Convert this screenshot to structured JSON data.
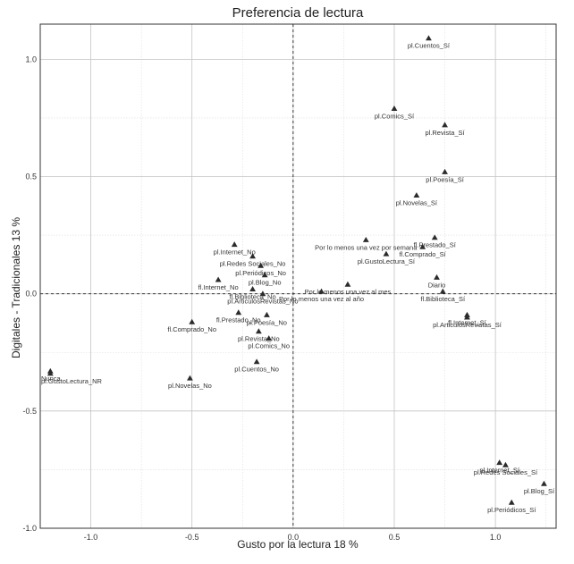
{
  "chart_data": {
    "type": "scatter",
    "title": "Preferencia de lectura",
    "xlabel": "Gusto por la lectura 18 %",
    "ylabel": "Digitales - Tradicionales 13 %",
    "xlim": [
      -1.25,
      1.3
    ],
    "ylim": [
      -1.0,
      1.15
    ],
    "x_ticks": [
      -1.0,
      -0.5,
      0.0,
      0.5,
      1.0
    ],
    "x_tick_labels": [
      "-1.0",
      "-0.5",
      "0.0",
      "0.5",
      "1.0"
    ],
    "y_ticks": [
      -1.0,
      -0.5,
      0.0,
      0.5,
      1.0
    ],
    "y_tick_labels": [
      "-1.0",
      "-0.5",
      "0.0",
      "0.5",
      "1.0"
    ],
    "grid": true,
    "reference_lines": {
      "x": 0,
      "y": 0
    },
    "marker": "triangle",
    "points": [
      {
        "label": "pl.Cuentos_Sí",
        "x": 0.67,
        "y": 1.09
      },
      {
        "label": "pl.Comics_Sí",
        "x": 0.5,
        "y": 0.79
      },
      {
        "label": "pl.Revista_Sí",
        "x": 0.75,
        "y": 0.72
      },
      {
        "label": "pl.Poesía_Sí",
        "x": 0.75,
        "y": 0.52
      },
      {
        "label": "pl.Novelas_Sí",
        "x": 0.61,
        "y": 0.42
      },
      {
        "label": "Por lo menos una vez por semana",
        "x": 0.36,
        "y": 0.23
      },
      {
        "label": "fl.Prestado_Sí",
        "x": 0.7,
        "y": 0.24
      },
      {
        "label": "fl.Comprado_Sí",
        "x": 0.64,
        "y": 0.2
      },
      {
        "label": "pl.GustoLectura_Sí",
        "x": 0.46,
        "y": 0.17
      },
      {
        "label": "Diario",
        "x": 0.71,
        "y": 0.07
      },
      {
        "label": "fl.Biblioteca_Sí",
        "x": 0.74,
        "y": 0.01
      },
      {
        "label": "Por lo menos una vez al mes",
        "x": 0.27,
        "y": 0.04
      },
      {
        "label": "Por lo menos una vez al año",
        "x": 0.14,
        "y": 0.01
      },
      {
        "label": "fl.Internet_Sí",
        "x": 0.86,
        "y": -0.09
      },
      {
        "label": "pl.ArticulosRevistas_Sí",
        "x": 0.86,
        "y": -0.1
      },
      {
        "label": "pl.Internet_No",
        "x": -0.29,
        "y": 0.21
      },
      {
        "label": "pl.Redes Sociales_No",
        "x": -0.2,
        "y": 0.16
      },
      {
        "label": "pl.Periódicos_No",
        "x": -0.16,
        "y": 0.12
      },
      {
        "label": "fl.Internet_No",
        "x": -0.37,
        "y": 0.06
      },
      {
        "label": "pl.Blog_No",
        "x": -0.14,
        "y": 0.08
      },
      {
        "label": "fl.Biblioteca_No",
        "x": -0.2,
        "y": 0.02
      },
      {
        "label": "pl.ArticulosRevistas_No",
        "x": -0.15,
        "y": 0.0
      },
      {
        "label": "fl.Prestado_No",
        "x": -0.27,
        "y": -0.08
      },
      {
        "label": "pl.Poesía_No",
        "x": -0.13,
        "y": -0.09
      },
      {
        "label": "fl.Comprado_No",
        "x": -0.5,
        "y": -0.12
      },
      {
        "label": "pl.Revista_No",
        "x": -0.17,
        "y": -0.16
      },
      {
        "label": "pl.Comics_No",
        "x": -0.12,
        "y": -0.19
      },
      {
        "label": "pl.Cuentos_No",
        "x": -0.18,
        "y": -0.29
      },
      {
        "label": "pl.Novelas_No",
        "x": -0.51,
        "y": -0.36
      },
      {
        "label": "Nunca",
        "x": -1.2,
        "y": -0.33
      },
      {
        "label": "pl.GustoLectura_NR",
        "x": -1.2,
        "y": -0.34
      },
      {
        "label": "pl.Internet_Sí",
        "x": 1.02,
        "y": -0.72
      },
      {
        "label": "pl.Redes Sociales_Sí",
        "x": 1.05,
        "y": -0.73
      },
      {
        "label": "pl.Blog_Sí",
        "x": 1.24,
        "y": -0.81
      },
      {
        "label": "pl.Periódicos_Sí",
        "x": 1.08,
        "y": -0.89
      }
    ],
    "label_offsets": {}
  }
}
